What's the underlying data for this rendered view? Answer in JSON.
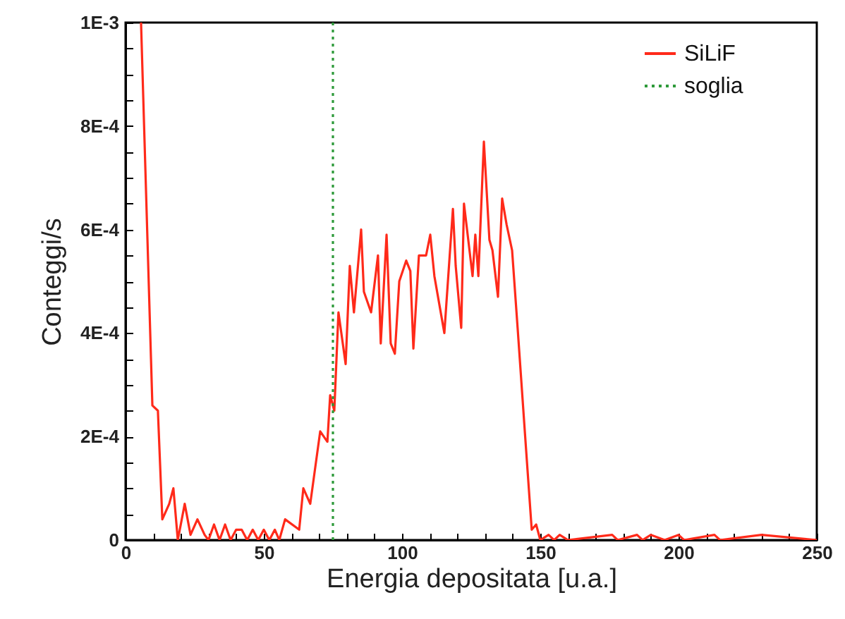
{
  "chart_data": {
    "type": "line",
    "xlabel": "Energia depositata [u.a.]",
    "ylabel": "Conteggi/s",
    "xlim": [
      0,
      250
    ],
    "ylim": [
      0,
      0.001
    ],
    "xticks": [
      0,
      {
        "value": 10,
        "label": null
      },
      {
        "value": 20,
        "label": null
      },
      {
        "value": 30,
        "label": null
      },
      {
        "value": 40,
        "label": null
      },
      50,
      {
        "value": 60,
        "label": null
      },
      {
        "value": 70,
        "label": null
      },
      {
        "value": 80,
        "label": null
      },
      {
        "value": 90,
        "label": null
      },
      100,
      {
        "value": 110,
        "label": null
      },
      {
        "value": 120,
        "label": null
      },
      {
        "value": 130,
        "label": null
      },
      {
        "value": 140,
        "label": null
      },
      150,
      {
        "value": 160,
        "label": null
      },
      {
        "value": 170,
        "label": null
      },
      {
        "value": 180,
        "label": null
      },
      {
        "value": 190,
        "label": null
      },
      200,
      {
        "value": 210,
        "label": null
      },
      {
        "value": 220,
        "label": null
      },
      {
        "value": 230,
        "label": null
      },
      {
        "value": 240,
        "label": null
      },
      250
    ],
    "yticks": [
      0,
      {
        "value": 5e-05,
        "label": null
      },
      {
        "value": 0.0001,
        "label": null
      },
      {
        "value": 0.00015,
        "label": null
      },
      {
        "value": 0.0002,
        "label": "2E-4"
      },
      {
        "value": 0.00025,
        "label": null
      },
      {
        "value": 0.0003,
        "label": null
      },
      {
        "value": 0.00035,
        "label": null
      },
      {
        "value": 0.0004,
        "label": "4E-4"
      },
      {
        "value": 0.00045,
        "label": null
      },
      {
        "value": 0.0005,
        "label": null
      },
      {
        "value": 0.00055,
        "label": null
      },
      {
        "value": 0.0006,
        "label": "6E-4"
      },
      {
        "value": 0.00065,
        "label": null
      },
      {
        "value": 0.0007,
        "label": null
      },
      {
        "value": 0.00075,
        "label": null
      },
      {
        "value": 0.0008,
        "label": "8E-4"
      },
      {
        "value": 0.00085,
        "label": null
      },
      {
        "value": 0.0009,
        "label": null
      },
      {
        "value": 0.00095,
        "label": null
      },
      {
        "value": 0.001,
        "label": "1E-3"
      }
    ],
    "grid": false,
    "legend": "top right",
    "line_style": "solid",
    "series": [
      {
        "name": "SiLiF",
        "color": "#ff2a1a",
        "x": [
          5.6,
          9.7,
          11.7,
          13.3,
          15.8,
          17.3,
          18.9,
          21.4,
          23.5,
          26,
          28.6,
          30,
          32,
          34,
          36,
          38,
          40,
          42,
          44,
          46,
          48,
          50,
          52,
          54,
          55.6,
          57.7,
          62.8,
          64.3,
          66.8,
          70.4,
          73,
          74,
          75.5,
          77,
          79.6,
          81.1,
          82.6,
          85.2,
          86.2,
          88.8,
          91.3,
          92.3,
          94.4,
          95.9,
          97.4,
          99,
          101.5,
          103,
          104.1,
          106.1,
          108.7,
          110.2,
          111.7,
          115.3,
          118.4,
          119.4,
          121.4,
          122.4,
          125.5,
          126.5,
          127.6,
          129.6,
          131.6,
          132.7,
          134.7,
          136.2,
          137.8,
          139.8,
          141.8,
          144.4,
          146.9,
          148.5,
          150,
          153,
          155,
          157,
          160,
          176,
          178,
          185,
          187,
          190,
          195,
          200,
          202,
          213,
          215,
          230,
          250
        ],
        "values": [
          0.001,
          0.00026,
          0.00025,
          4e-05,
          7e-05,
          0.0001,
          0,
          7e-05,
          1e-05,
          4e-05,
          1e-05,
          0,
          3e-05,
          0,
          3e-05,
          0,
          2e-05,
          2e-05,
          0,
          2e-05,
          0,
          2e-05,
          0,
          2e-05,
          0,
          4e-05,
          2e-05,
          0.0001,
          7e-05,
          0.00021,
          0.00019,
          0.00028,
          0.00025,
          0.00044,
          0.00034,
          0.00053,
          0.00044,
          0.0006,
          0.00048,
          0.00044,
          0.00055,
          0.00038,
          0.00059,
          0.00038,
          0.00036,
          0.0005,
          0.00054,
          0.00052,
          0.00037,
          0.00055,
          0.00055,
          0.00059,
          0.00051,
          0.0004,
          0.00064,
          0.00053,
          0.00041,
          0.00065,
          0.00051,
          0.00059,
          0.00051,
          0.00077,
          0.00058,
          0.00056,
          0.00047,
          0.00066,
          0.00061,
          0.00056,
          0.00041,
          0.00021,
          2e-05,
          3e-05,
          0,
          1e-05,
          0,
          1e-05,
          0,
          1e-05,
          0,
          1e-05,
          0,
          1e-05,
          0,
          1e-05,
          0,
          1e-05,
          0,
          1e-05,
          0
        ]
      },
      {
        "name": "soglia",
        "color": "#2e9a3a",
        "line_style": "dotted",
        "x": [
          75,
          75
        ],
        "values": [
          0,
          0.001
        ]
      }
    ]
  }
}
